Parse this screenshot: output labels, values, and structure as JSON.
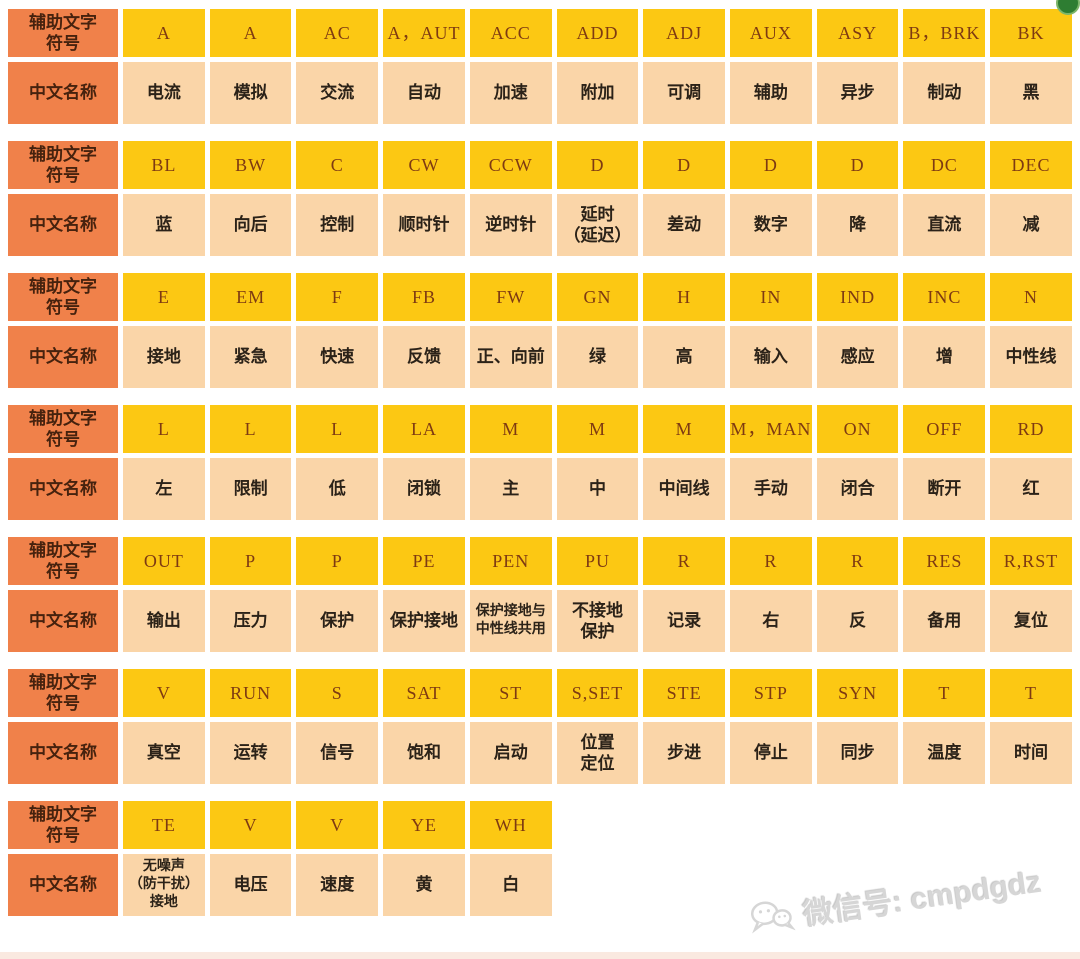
{
  "colors": {
    "header_bg": "#F0814A",
    "symbol_bg": "#FCC813",
    "name_bg": "#FAD5A8",
    "symbol_text": "#7E3A12",
    "name_text": "#2B2218",
    "header_text": "#46220E",
    "strip": "#FAE9E0",
    "dot": "#2E7D32",
    "watermark": "#D6D6D6"
  },
  "labels": {
    "symbol_row": "辅助文字\n符号",
    "name_row": "中文名称"
  },
  "blocks": [
    {
      "symbols": [
        "A",
        "A",
        "AC",
        "A，AUT",
        "ACC",
        "ADD",
        "ADJ",
        "AUX",
        "ASY",
        "B，BRK",
        "BK"
      ],
      "names": [
        "电流",
        "模拟",
        "交流",
        "自动",
        "加速",
        "附加",
        "可调",
        "辅助",
        "异步",
        "制动",
        "黑"
      ]
    },
    {
      "symbols": [
        "BL",
        "BW",
        "C",
        "CW",
        "CCW",
        "D",
        "D",
        "D",
        "D",
        "DC",
        "DEC"
      ],
      "names": [
        "蓝",
        "向后",
        "控制",
        "顺时针",
        "逆时针",
        "延时\n（延迟）",
        "差动",
        "数字",
        "降",
        "直流",
        "减"
      ]
    },
    {
      "symbols": [
        "E",
        "EM",
        "F",
        "FB",
        "FW",
        "GN",
        "H",
        "IN",
        "IND",
        "INC",
        "N"
      ],
      "names": [
        "接地",
        "紧急",
        "快速",
        "反馈",
        "正、向前",
        "绿",
        "高",
        "输入",
        "感应",
        "增",
        "中性线"
      ]
    },
    {
      "symbols": [
        "L",
        "L",
        "L",
        "LA",
        "M",
        "M",
        "M",
        "M，MAN",
        "ON",
        "OFF",
        "RD"
      ],
      "names": [
        "左",
        "限制",
        "低",
        "闭锁",
        "主",
        "中",
        "中间线",
        "手动",
        "闭合",
        "断开",
        "红"
      ]
    },
    {
      "symbols": [
        "OUT",
        "P",
        "P",
        "PE",
        "PEN",
        "PU",
        "R",
        "R",
        "R",
        "RES",
        "R,RST"
      ],
      "names": [
        "输出",
        "压力",
        "保护",
        "保护接地",
        "保护接地与\n中性线共用",
        "不接地\n保护",
        "记录",
        "右",
        "反",
        "备用",
        "复位"
      ]
    },
    {
      "symbols": [
        "V",
        "RUN",
        "S",
        "SAT",
        "ST",
        "S,SET",
        "STE",
        "STP",
        "SYN",
        "T",
        "T"
      ],
      "names": [
        "真空",
        "运转",
        "信号",
        "饱和",
        "启动",
        "位置\n定位",
        "步进",
        "停止",
        "同步",
        "温度",
        "时间"
      ]
    },
    {
      "symbols": [
        "TE",
        "V",
        "V",
        "YE",
        "WH"
      ],
      "names": [
        "无噪声\n（防干扰）\n接地",
        "电压",
        "速度",
        "黄",
        "白"
      ]
    }
  ],
  "watermark": {
    "text": "微信号: cmpdgdz"
  }
}
